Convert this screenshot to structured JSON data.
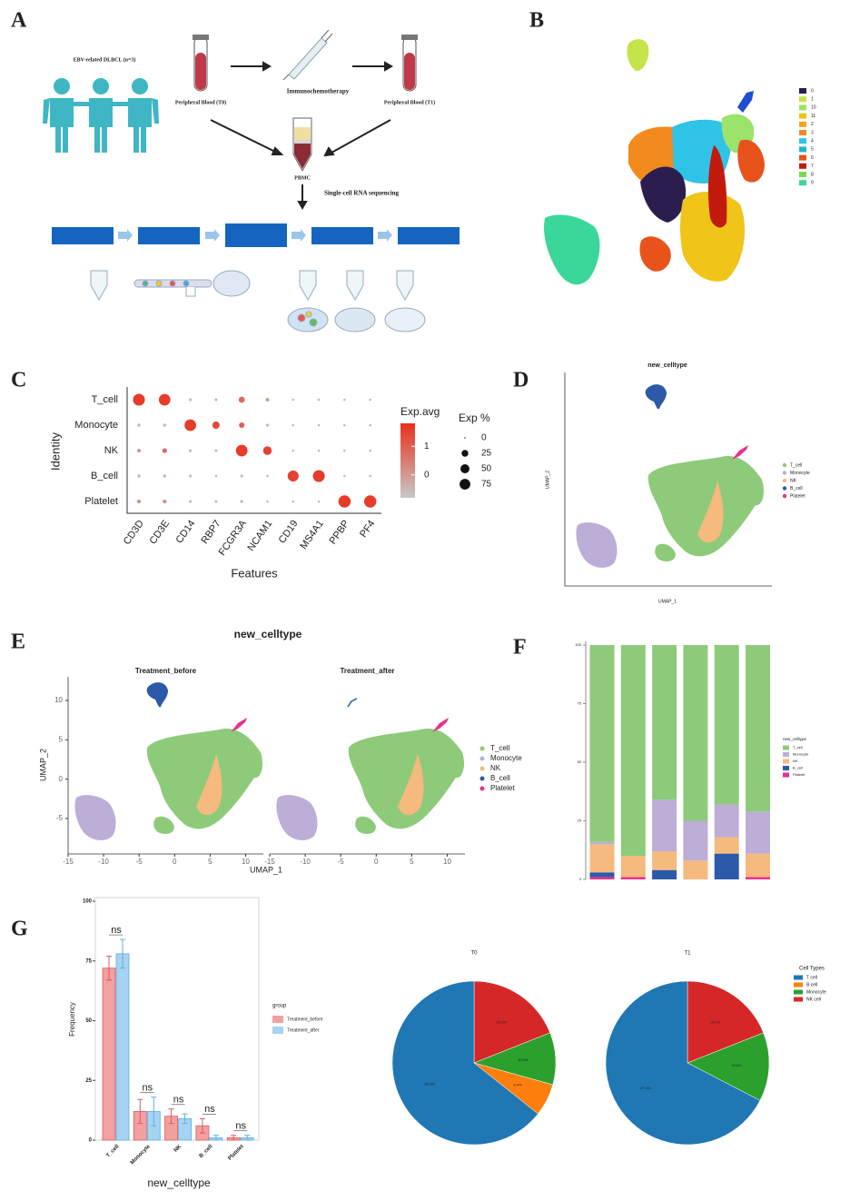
{
  "figure": {
    "panel_labels": [
      "A",
      "B",
      "C",
      "D",
      "E",
      "F",
      "G"
    ]
  },
  "workflow": {
    "cohort": "EBV-related DLBCL (n=3)",
    "blood_before": "Peripheral Blood (T0)",
    "therapy": "Immunochemotherapy",
    "blood_after": "Peripheral Blood (T1)",
    "pbmc": "PBMC",
    "sequencing": "Single-cell RNA sequencing"
  },
  "chart_data": [
    {
      "type": "umap-clusters",
      "series": [
        {
          "name": "0",
          "color": "#2b1d4e"
        },
        {
          "name": "1",
          "color": "#c5e34a"
        },
        {
          "name": "10",
          "color": "#9be36a"
        },
        {
          "name": "11",
          "color": "#f0c419"
        },
        {
          "name": "2",
          "color": "#f4a321"
        },
        {
          "name": "3",
          "color": "#f28a1e"
        },
        {
          "name": "4",
          "color": "#2fc3e8"
        },
        {
          "name": "5",
          "color": "#20b8c8"
        },
        {
          "name": "6",
          "color": "#e8531c"
        },
        {
          "name": "7",
          "color": "#c21a0d"
        },
        {
          "name": "8",
          "color": "#7cd94a"
        },
        {
          "name": "9",
          "color": "#3bd69a"
        }
      ]
    },
    {
      "type": "dotplot",
      "xlabel": "Features",
      "ylabel": "Identity",
      "categories": [
        "CD3D",
        "CD3E",
        "CD14",
        "RBP7",
        "FCGR3A",
        "NCAM1",
        "CD19",
        "MS4A1",
        "PPBP",
        "PF4"
      ],
      "series": [
        {
          "name": "T_cell",
          "values": [
            95,
            90,
            2,
            2,
            20,
            4,
            1,
            1,
            1,
            1
          ],
          "avg": [
            1.6,
            1.6,
            -0.5,
            -0.5,
            0.8,
            0.2,
            -0.5,
            -0.5,
            -0.5,
            -0.5
          ]
        },
        {
          "name": "Monocyte",
          "values": [
            3,
            3,
            90,
            30,
            15,
            2,
            1,
            1,
            1,
            1
          ],
          "avg": [
            -0.5,
            -0.5,
            1.6,
            1.4,
            1.0,
            -0.3,
            -0.5,
            -0.5,
            -0.5,
            -0.5
          ]
        },
        {
          "name": "NK",
          "values": [
            4,
            10,
            2,
            2,
            90,
            45,
            1,
            1,
            1,
            1
          ],
          "avg": [
            0.3,
            0.8,
            -0.5,
            -0.5,
            1.6,
            1.5,
            -0.5,
            -0.5,
            -0.5,
            -0.5
          ]
        },
        {
          "name": "B_cell",
          "values": [
            3,
            3,
            2,
            1,
            2,
            1,
            80,
            95,
            1,
            1
          ],
          "avg": [
            -0.5,
            -0.5,
            -0.5,
            -0.5,
            -0.5,
            -0.5,
            1.5,
            1.6,
            -0.5,
            -0.5
          ]
        },
        {
          "name": "Platelet",
          "values": [
            5,
            5,
            2,
            2,
            3,
            1,
            1,
            1,
            100,
            100
          ],
          "avg": [
            0.2,
            0.2,
            -0.5,
            -0.5,
            -0.5,
            -0.5,
            -0.5,
            -0.5,
            1.6,
            1.6
          ]
        }
      ],
      "size_legend": {
        "title": "Exp %",
        "ticks": [
          0,
          25,
          50,
          75
        ]
      },
      "color_legend": {
        "title": "Exp.avg",
        "ticks": [
          0,
          1
        ],
        "clim": [
          -0.8,
          1.8
        ],
        "colors": [
          "#c8c8c8",
          "#e8301c"
        ]
      }
    },
    {
      "type": "umap",
      "title": "new_celltype",
      "xlabel": "UMAP_1",
      "ylabel": "UMAP_2",
      "series": [
        {
          "name": "T_cell",
          "color": "#8dcb7a"
        },
        {
          "name": "Monocyte",
          "color": "#bcaed6"
        },
        {
          "name": "NK",
          "color": "#f6b97e"
        },
        {
          "name": "B_cell",
          "color": "#2c5aa8"
        },
        {
          "name": "Platelet",
          "color": "#e8318e"
        }
      ]
    },
    {
      "type": "umap",
      "title": "new_celltype",
      "subtitles": [
        "Treatment_before",
        "Treatment_after"
      ],
      "xlabel": "UMAP_1",
      "ylabel": "UMAP_2",
      "xlim": [
        -15,
        12.5
      ],
      "ylim": [
        -9.5,
        13
      ],
      "xticks": [
        -15,
        -10,
        -5,
        0,
        5,
        10
      ],
      "yticks": [
        -5,
        0,
        5,
        10
      ],
      "series": [
        {
          "name": "T_cell",
          "color": "#8dcb7a"
        },
        {
          "name": "Monocyte",
          "color": "#bcaed6"
        },
        {
          "name": "NK",
          "color": "#f6b97e"
        },
        {
          "name": "B_cell",
          "color": "#2c5aa8"
        },
        {
          "name": "Platelet",
          "color": "#e8318e"
        }
      ]
    },
    {
      "type": "bar",
      "stacked": true,
      "legend_title": "new_celltype",
      "categories": [
        null,
        null,
        null,
        null,
        null,
        null
      ],
      "ylim": [
        0,
        100
      ],
      "yticks": [
        0,
        25,
        50,
        75,
        100
      ],
      "series": [
        {
          "name": "T_cell",
          "color": "#8dcb7a",
          "values": [
            84,
            90,
            66,
            75,
            68,
            71
          ]
        },
        {
          "name": "Monocyte",
          "color": "#bcaed6",
          "values": [
            1,
            0,
            22,
            17,
            14,
            18
          ]
        },
        {
          "name": "NK",
          "color": "#f6b97e",
          "values": [
            12,
            9,
            8,
            8,
            7,
            10
          ]
        },
        {
          "name": "B_cell",
          "color": "#2c5aa8",
          "values": [
            2,
            0,
            4,
            0,
            11,
            0
          ]
        },
        {
          "name": "Platelet",
          "color": "#e8318e",
          "values": [
            1,
            1,
            0,
            0,
            0,
            1
          ]
        }
      ]
    },
    {
      "type": "bar",
      "xlabel": "new_celltype",
      "ylabel": "Frequency",
      "legend_title": "group",
      "categories": [
        "T_cell",
        "Monocyte",
        "NK",
        "B_cell",
        "Platelet"
      ],
      "ylim": [
        0,
        100
      ],
      "yticks": [
        0,
        25,
        50,
        75,
        100
      ],
      "series": [
        {
          "name": "Treatment_before",
          "color": "#f2a0a0",
          "values": [
            72,
            12,
            10,
            6,
            1
          ],
          "errors": [
            5,
            5,
            3,
            3,
            1
          ]
        },
        {
          "name": "Treatment_after",
          "color": "#a6d3f2",
          "values": [
            78,
            12,
            9,
            1,
            1
          ],
          "errors": [
            6,
            6,
            2,
            1,
            1
          ]
        }
      ],
      "annotations": [
        "ns",
        "ns",
        "ns",
        "ns",
        "ns"
      ]
    },
    {
      "type": "pie",
      "title": "T0",
      "colors": [
        "#1f77b4",
        "#ff7f0e",
        "#2ca02c",
        "#d62728"
      ],
      "values": [
        64.3,
        6.4,
        10.3,
        19.0
      ],
      "value_labels": [
        "64.3%",
        "6.4%",
        "10.3%",
        "19.0%"
      ]
    },
    {
      "type": "pie",
      "title": "T1",
      "legend_title": "Cell Types",
      "categories": [
        "T cell",
        "B cell",
        "Monocyte",
        "NK cell"
      ],
      "colors": [
        "#1f77b4",
        "#ff7f0e",
        "#2ca02c",
        "#d62728"
      ],
      "values": [
        67.4,
        0,
        13.6,
        19.0
      ],
      "value_labels": [
        "67.4%",
        null,
        "13.6%",
        "19.0%"
      ]
    }
  ]
}
